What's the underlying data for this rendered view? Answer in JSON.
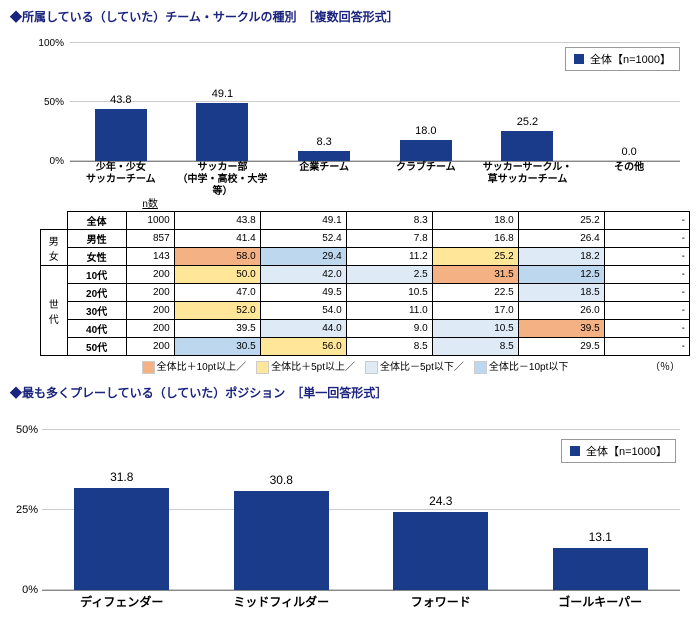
{
  "chart1": {
    "title": "◆所属している（していた）チーム・サークルの種別　［複数回答形式］",
    "legend_label": "全体【n=1000】",
    "bar_color": "#1a3a8a",
    "ylim": [
      0,
      100
    ],
    "yticks": [
      0,
      50,
      100
    ],
    "ytick_labels": [
      "0%",
      "50%",
      "100%"
    ],
    "categories": [
      "少年・少女\nサッカーチーム",
      "サッカー部\n（中学・高校・大学等）",
      "企業チーム",
      "クラブチーム",
      "サッカーサークル・\n草サッカーチーム",
      "その他"
    ],
    "values": [
      43.8,
      49.1,
      8.3,
      18.0,
      25.2,
      0.0
    ]
  },
  "table": {
    "n_header": "n数",
    "side_headers": [
      "男女",
      "世代"
    ],
    "row_labels": [
      "全体",
      "男性",
      "女性",
      "10代",
      "20代",
      "30代",
      "40代",
      "50代"
    ],
    "n_values": [
      1000,
      857,
      143,
      200,
      200,
      200,
      200,
      200
    ],
    "cells": [
      [
        43.8,
        49.1,
        8.3,
        18.0,
        25.2,
        "-"
      ],
      [
        41.4,
        52.4,
        7.8,
        16.8,
        26.4,
        "-"
      ],
      [
        58.0,
        29.4,
        11.2,
        25.2,
        18.2,
        "-"
      ],
      [
        50.0,
        42.0,
        2.5,
        31.5,
        12.5,
        "-"
      ],
      [
        47.0,
        49.5,
        10.5,
        22.5,
        18.5,
        "-"
      ],
      [
        52.0,
        54.0,
        11.0,
        17.0,
        26.0,
        "-"
      ],
      [
        39.5,
        44.0,
        9.0,
        10.5,
        39.5,
        "-"
      ],
      [
        30.5,
        56.0,
        8.5,
        8.5,
        29.5,
        "-"
      ]
    ],
    "hl": {
      "p10": "#f4b183",
      "p5": "#ffe699",
      "m5": "#deebf7",
      "m10": "#bdd7ee"
    },
    "hl_map": [
      [
        null,
        null,
        null,
        null,
        null,
        null
      ],
      [
        null,
        null,
        null,
        null,
        null,
        null
      ],
      [
        "p10",
        "m10",
        null,
        "p5",
        "m5",
        null
      ],
      [
        "p5",
        "m5",
        "m5",
        "p10",
        "m10",
        null
      ],
      [
        null,
        null,
        null,
        null,
        "m5",
        null
      ],
      [
        "p5",
        null,
        null,
        null,
        null,
        null
      ],
      [
        null,
        "m5",
        null,
        "m5",
        "p10",
        null
      ],
      [
        "m10",
        "p5",
        null,
        "m5",
        null,
        null
      ]
    ],
    "legend_items": [
      {
        "color": "#f4b183",
        "label": "全体比＋10pt以上／"
      },
      {
        "color": "#ffe699",
        "label": "全体比＋5pt以上／"
      },
      {
        "color": "#deebf7",
        "label": "全体比－5pt以下／"
      },
      {
        "color": "#bdd7ee",
        "label": "全体比－10pt以下"
      }
    ],
    "pct_note": "（％）"
  },
  "chart2": {
    "title": "◆最も多くプレーしている（していた）ポジション　［単一回答形式］",
    "legend_label": "全体【n=1000】",
    "bar_color": "#1a3a8a",
    "ylim": [
      0,
      50
    ],
    "yticks": [
      0,
      25,
      50
    ],
    "ytick_labels": [
      "0%",
      "25%",
      "50%"
    ],
    "categories": [
      "ディフェンダー",
      "ミッドフィルダー",
      "フォワード",
      "ゴールキーパー"
    ],
    "values": [
      31.8,
      30.8,
      24.3,
      13.1
    ]
  }
}
